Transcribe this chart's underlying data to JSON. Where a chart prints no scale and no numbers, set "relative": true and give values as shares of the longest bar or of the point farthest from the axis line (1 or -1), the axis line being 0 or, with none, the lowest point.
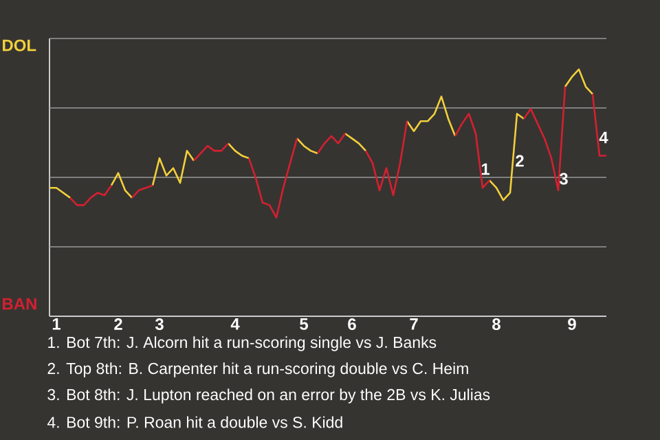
{
  "chart_data": {
    "type": "line",
    "relative": true,
    "categories": [
      null,
      "1",
      null,
      null,
      null,
      null,
      null,
      null,
      null,
      null,
      "2",
      null,
      null,
      null,
      null,
      null,
      "3",
      null,
      null,
      null,
      null,
      null,
      null,
      null,
      null,
      null,
      null,
      "4",
      null,
      null,
      null,
      null,
      null,
      null,
      null,
      null,
      null,
      "5",
      null,
      null,
      null,
      null,
      null,
      null,
      "6",
      null,
      null,
      null,
      null,
      null,
      null,
      null,
      null,
      "7",
      null,
      null,
      null,
      null,
      null,
      null,
      null,
      null,
      null,
      null,
      null,
      "8",
      null,
      null,
      null,
      null,
      null,
      null,
      null,
      null,
      null,
      null,
      "9",
      null,
      null,
      null,
      null,
      null
    ],
    "grid": "y",
    "line_style": "solid",
    "marker": "none",
    "series": [
      {
        "color": "#f2d03b",
        "values": [
          0.52,
          0.52,
          0.5,
          0.48,
          null,
          null,
          null,
          null,
          null,
          0.53,
          0.58,
          0.51,
          0.48,
          null,
          null,
          0.53,
          0.64,
          0.57,
          0.6,
          0.54,
          0.67,
          0.63,
          null,
          null,
          null,
          null,
          0.7,
          0.67,
          0.65,
          0.64,
          null,
          null,
          null,
          null,
          null,
          null,
          0.72,
          0.69,
          0.67,
          0.66,
          null,
          null,
          null,
          0.74,
          0.72,
          0.7,
          0.67,
          null,
          null,
          null,
          null,
          null,
          0.79,
          0.75,
          0.79,
          0.79,
          0.82,
          0.89,
          0.8,
          0.73,
          null,
          null,
          null,
          null,
          0.55,
          0.52,
          0.47,
          0.5,
          0.82,
          0.8,
          null,
          null,
          null,
          null,
          null,
          0.93,
          0.97,
          1,
          0.93,
          0.9,
          null,
          null
        ]
      },
      {
        "color": "#d42030",
        "values": [
          null,
          null,
          null,
          0.48,
          0.45,
          0.45,
          0.48,
          0.5,
          0.49,
          0.53,
          null,
          null,
          0.48,
          0.51,
          0.52,
          0.53,
          null,
          null,
          null,
          null,
          null,
          0.63,
          0.66,
          0.69,
          0.67,
          0.67,
          0.7,
          null,
          null,
          0.64,
          0.56,
          0.46,
          0.45,
          0.4,
          0.52,
          0.62,
          0.72,
          null,
          null,
          0.66,
          0.7,
          0.73,
          0.7,
          0.74,
          null,
          null,
          0.67,
          0.62,
          0.51,
          0.6,
          0.49,
          0.62,
          0.79,
          null,
          null,
          null,
          null,
          null,
          null,
          0.73,
          0.78,
          0.82,
          0.74,
          0.52,
          0.55,
          null,
          null,
          null,
          null,
          0.8,
          0.84,
          0.78,
          0.72,
          0.64,
          0.51,
          0.93,
          null,
          null,
          null,
          0.9,
          0.65,
          0.65
        ]
      }
    ],
    "annotations": [
      "DOL",
      "BAN",
      "1",
      "2",
      "3",
      "4",
      "1. Bot 7th: J. Alcorn hit a run-scoring single vs J. Banks",
      "2. Top 8th: B. Carpenter hit a run-scoring double vs C. Heim",
      "3. Bot 8th: J. Lupton reached on an error by the 2B vs K. Julias",
      "4. Bot 9th: P. Roan hit a double vs S. Kidd"
    ]
  }
}
